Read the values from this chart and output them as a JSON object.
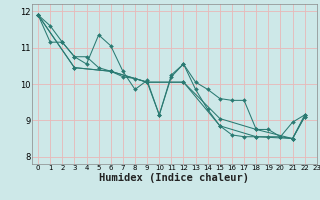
{
  "xlabel": "Humidex (Indice chaleur)",
  "xlim": [
    -0.5,
    23
  ],
  "ylim": [
    7.8,
    12.2
  ],
  "yticks": [
    8,
    9,
    10,
    11,
    12
  ],
  "xticks": [
    0,
    1,
    2,
    3,
    4,
    5,
    6,
    7,
    8,
    9,
    10,
    11,
    12,
    13,
    14,
    15,
    16,
    17,
    18,
    19,
    20,
    21,
    22,
    23
  ],
  "bg_color": "#cde8e8",
  "plot_bg": "#cde8e8",
  "grid_color": "#e8b8b8",
  "line_color": "#2a7a72",
  "xlabel_fontsize": 7.5,
  "series": [
    {
      "x": [
        0,
        1,
        2,
        3,
        4,
        5,
        6,
        7,
        8,
        9,
        10,
        11,
        12,
        13,
        14,
        15,
        16,
        17,
        18,
        19,
        20,
        21,
        22
      ],
      "y": [
        11.9,
        11.6,
        11.15,
        10.75,
        10.75,
        10.45,
        10.35,
        10.2,
        10.15,
        10.05,
        9.15,
        10.25,
        10.55,
        10.05,
        9.85,
        9.6,
        9.55,
        9.55,
        8.75,
        8.75,
        8.55,
        8.5,
        9.1
      ]
    },
    {
      "x": [
        0,
        1,
        2,
        3,
        4,
        5,
        6,
        7,
        8,
        9,
        10,
        11,
        12,
        13,
        14,
        15,
        16,
        17,
        18,
        19,
        20,
        21,
        22
      ],
      "y": [
        11.9,
        11.15,
        11.15,
        10.75,
        10.55,
        11.35,
        11.05,
        10.35,
        9.85,
        10.1,
        9.15,
        10.2,
        10.55,
        9.85,
        9.3,
        8.85,
        8.6,
        8.55,
        8.55,
        8.55,
        8.55,
        8.95,
        9.15
      ]
    },
    {
      "x": [
        0,
        3,
        6,
        9,
        12,
        15,
        18,
        21,
        22
      ],
      "y": [
        11.9,
        10.45,
        10.35,
        10.05,
        10.05,
        9.05,
        8.75,
        8.5,
        9.1
      ]
    },
    {
      "x": [
        0,
        3,
        6,
        9,
        12,
        15,
        18,
        21,
        22
      ],
      "y": [
        11.9,
        10.45,
        10.35,
        10.05,
        10.05,
        8.85,
        8.55,
        8.5,
        9.15
      ]
    }
  ]
}
